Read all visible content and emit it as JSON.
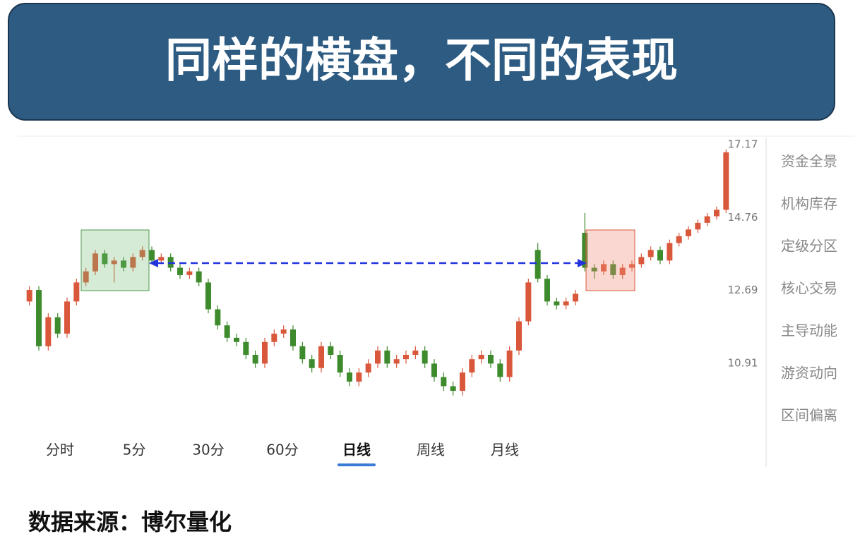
{
  "header": {
    "title": "同样的横盘，不同的表现"
  },
  "chart_data": {
    "type": "candlestick",
    "log_scale": true,
    "ylim": [
      9.49,
      17.3
    ],
    "yticks": [
      10.91,
      12.69,
      14.76,
      17.17
    ],
    "up_color": "#d9583b",
    "down_color": "#3d8b2c",
    "open": [
      12.4,
      12.7,
      11.3,
      12.0,
      11.6,
      12.4,
      12.9,
      13.2,
      13.7,
      13.4,
      13.5,
      13.3,
      13.6,
      13.8,
      13.5,
      13.6,
      13.3,
      13.1,
      13.2,
      12.9,
      12.2,
      11.8,
      11.5,
      11.4,
      11.1,
      10.9,
      11.4,
      11.6,
      11.7,
      11.3,
      11.0,
      10.8,
      11.3,
      11.1,
      10.7,
      10.5,
      10.7,
      10.9,
      11.2,
      10.9,
      11.0,
      11.1,
      11.2,
      10.9,
      10.6,
      10.4,
      10.3,
      10.7,
      11.0,
      11.1,
      10.9,
      10.6,
      11.2,
      11.9,
      13.8,
      13.0,
      12.4,
      12.3,
      12.4,
      14.3,
      13.3,
      13.2,
      13.4,
      13.1,
      13.3,
      13.4,
      13.6,
      13.8,
      13.5,
      14.0,
      14.2,
      14.4,
      14.6,
      14.8,
      15.0
    ],
    "high": [
      12.8,
      12.8,
      12.1,
      12.1,
      12.5,
      13.0,
      13.3,
      13.8,
      13.8,
      13.6,
      13.6,
      13.7,
      13.9,
      13.9,
      13.7,
      13.7,
      13.4,
      13.3,
      13.3,
      13.0,
      12.3,
      11.9,
      11.6,
      11.5,
      11.2,
      11.5,
      11.7,
      11.8,
      11.8,
      11.4,
      11.1,
      11.4,
      11.4,
      11.2,
      10.8,
      10.8,
      11.0,
      11.3,
      11.3,
      11.1,
      11.2,
      11.3,
      11.3,
      11.0,
      10.7,
      10.5,
      10.8,
      11.1,
      11.2,
      11.2,
      11.0,
      11.3,
      12.0,
      13.0,
      14.0,
      13.1,
      12.5,
      12.5,
      12.7,
      14.9,
      13.4,
      13.5,
      13.5,
      13.4,
      13.5,
      13.7,
      13.9,
      13.9,
      14.1,
      14.3,
      14.5,
      14.7,
      14.9,
      15.1,
      17.0
    ],
    "low": [
      12.3,
      11.2,
      11.2,
      11.5,
      11.5,
      12.3,
      12.8,
      13.1,
      13.3,
      12.9,
      13.2,
      13.2,
      13.5,
      13.4,
      13.4,
      13.2,
      13.0,
      13.0,
      12.8,
      12.1,
      11.7,
      11.4,
      11.3,
      11.0,
      10.8,
      10.8,
      11.3,
      11.5,
      11.2,
      10.9,
      10.7,
      10.7,
      11.0,
      10.6,
      10.4,
      10.4,
      10.6,
      10.8,
      10.8,
      10.8,
      10.9,
      11.0,
      10.8,
      10.5,
      10.3,
      10.2,
      10.2,
      10.6,
      10.9,
      10.8,
      10.5,
      10.5,
      11.1,
      11.8,
      12.9,
      12.3,
      12.2,
      12.2,
      12.3,
      13.2,
      13.0,
      13.1,
      13.0,
      13.0,
      13.2,
      13.3,
      13.5,
      13.4,
      13.4,
      13.9,
      14.1,
      14.3,
      14.5,
      14.7,
      14.9
    ],
    "close": [
      12.7,
      11.3,
      12.0,
      11.6,
      12.4,
      12.9,
      13.2,
      13.7,
      13.4,
      13.5,
      13.3,
      13.6,
      13.8,
      13.5,
      13.6,
      13.3,
      13.1,
      13.2,
      12.9,
      12.2,
      11.8,
      11.5,
      11.4,
      11.1,
      10.9,
      11.4,
      11.6,
      11.7,
      11.3,
      11.0,
      10.8,
      11.3,
      11.1,
      10.7,
      10.5,
      10.7,
      10.9,
      11.2,
      10.9,
      11.0,
      11.1,
      11.2,
      10.9,
      10.6,
      10.4,
      10.3,
      10.7,
      11.0,
      11.1,
      10.9,
      10.6,
      11.2,
      11.9,
      12.9,
      13.0,
      12.4,
      12.3,
      12.4,
      12.6,
      13.3,
      13.2,
      13.4,
      13.1,
      13.3,
      13.4,
      13.6,
      13.8,
      13.5,
      14.0,
      14.2,
      14.4,
      14.6,
      14.8,
      15.0,
      16.9
    ]
  },
  "tabs": {
    "items": [
      "分时",
      "5分",
      "30分",
      "60分",
      "日线",
      "周线",
      "月线"
    ],
    "selected": 4
  },
  "side_menu": [
    "资金全景",
    "机构库存",
    "定级分区",
    "核心交易",
    "主导动能",
    "游资动向",
    "区间偏离"
  ],
  "footer": {
    "source": "数据来源：博尔量化"
  }
}
